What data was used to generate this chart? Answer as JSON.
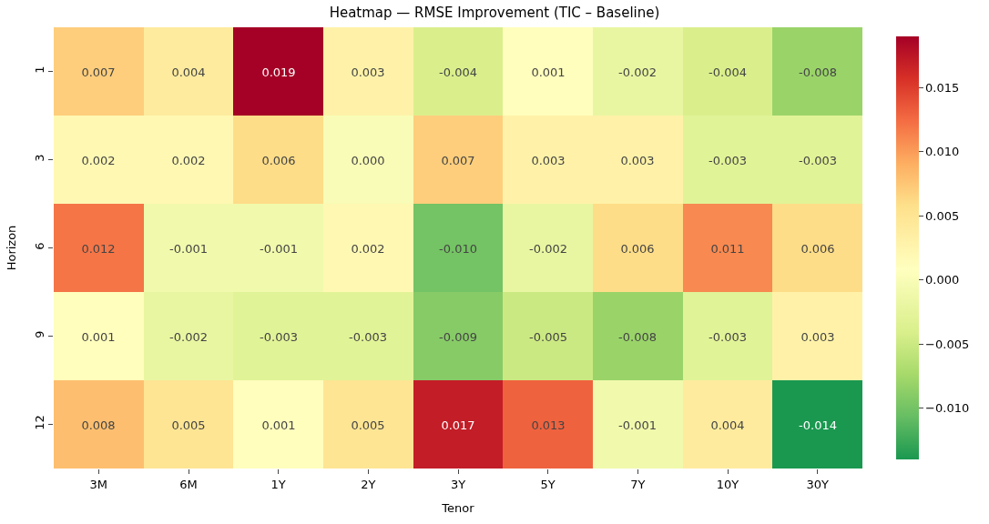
{
  "chart_data": {
    "type": "heatmap",
    "title": "Heatmap — RMSE Improvement (TIC – Baseline)",
    "xlabel": "Tenor",
    "ylabel": "Horizon",
    "categories": [
      "3M",
      "6M",
      "1Y",
      "2Y",
      "3Y",
      "5Y",
      "7Y",
      "10Y",
      "30Y"
    ],
    "y_categories": [
      "1",
      "3",
      "6",
      "9",
      "12"
    ],
    "cells": [
      [
        0.007,
        0.004,
        0.019,
        0.003,
        -0.004,
        0.001,
        -0.002,
        -0.004,
        -0.008
      ],
      [
        0.002,
        0.002,
        0.006,
        0.0,
        0.007,
        0.003,
        0.003,
        -0.003,
        -0.003
      ],
      [
        0.012,
        -0.001,
        -0.001,
        0.002,
        -0.01,
        -0.002,
        0.006,
        0.011,
        0.006
      ],
      [
        0.001,
        -0.002,
        -0.003,
        -0.003,
        -0.009,
        -0.005,
        -0.008,
        -0.003,
        0.003
      ],
      [
        0.008,
        0.005,
        0.001,
        0.005,
        0.017,
        0.013,
        -0.001,
        0.004,
        -0.014
      ]
    ],
    "cell_labels": [
      [
        "0.007",
        "0.004",
        "0.019",
        "0.003",
        "-0.004",
        "0.001",
        "-0.002",
        "-0.004",
        "-0.008"
      ],
      [
        "0.002",
        "0.002",
        "0.006",
        "0.000",
        "0.007",
        "0.003",
        "0.003",
        "-0.003",
        "-0.003"
      ],
      [
        "0.012",
        "-0.001",
        "-0.001",
        "0.002",
        "-0.010",
        "-0.002",
        "0.006",
        "0.011",
        "0.006"
      ],
      [
        "0.001",
        "-0.002",
        "-0.003",
        "-0.003",
        "-0.009",
        "-0.005",
        "-0.008",
        "-0.003",
        "0.003"
      ],
      [
        "0.008",
        "0.005",
        "0.001",
        "0.005",
        "0.017",
        "0.013",
        "-0.001",
        "0.004",
        "-0.014"
      ]
    ],
    "clim": [
      -0.014,
      0.019
    ],
    "cticks": [
      {
        "value": -0.01,
        "label": "−0.010"
      },
      {
        "value": -0.005,
        "label": "−0.005"
      },
      {
        "value": 0,
        "label": "0.000"
      },
      {
        "value": 0.005,
        "label": "0.005"
      },
      {
        "value": 0.01,
        "label": "0.010"
      },
      {
        "value": 0.015,
        "label": "0.015"
      }
    ]
  }
}
